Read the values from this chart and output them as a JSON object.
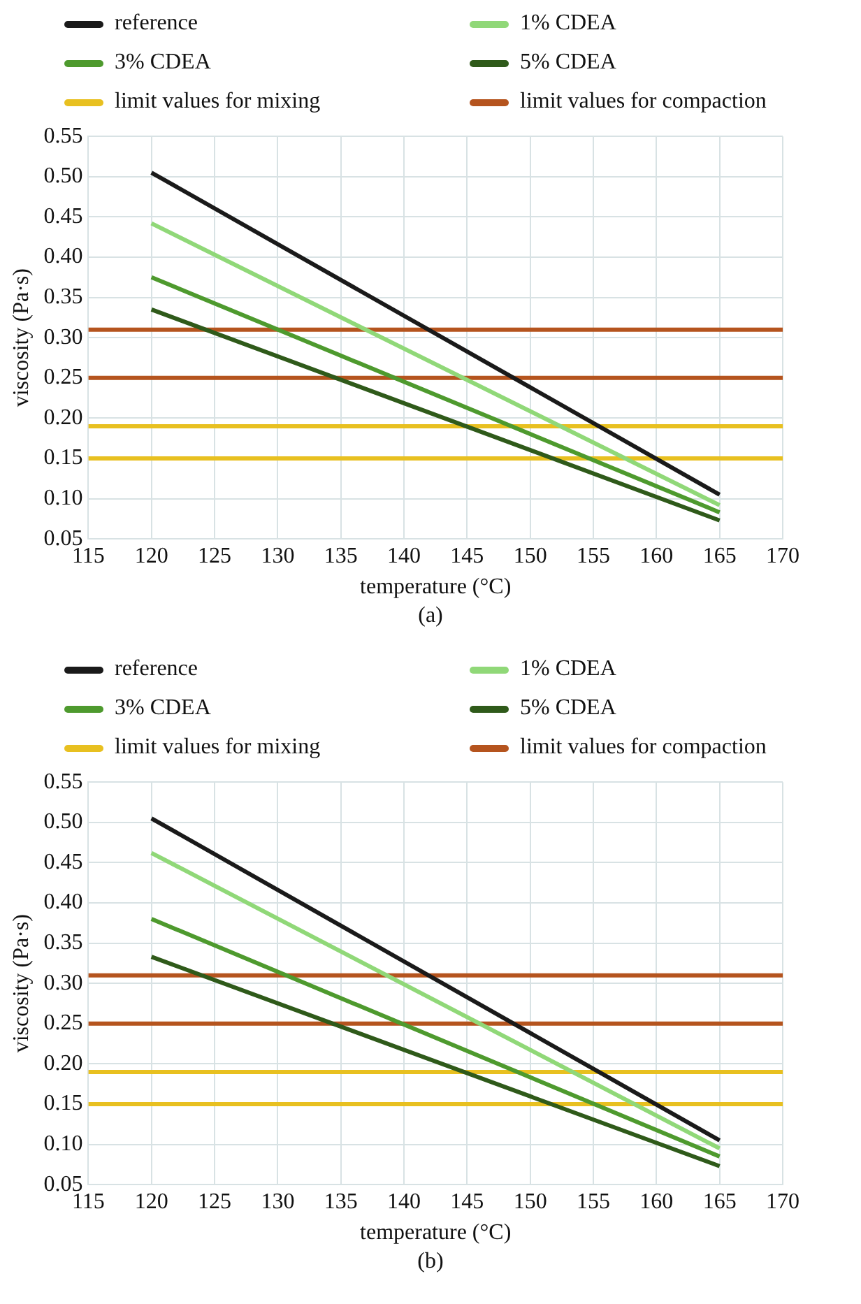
{
  "chart_data": [
    {
      "type": "line",
      "xlabel": "temperature (°C)",
      "ylabel": "viscosity (Pa·s)",
      "annotations": [
        "(a)"
      ],
      "xlim": [
        115,
        170
      ],
      "xticks": [
        115,
        120,
        125,
        130,
        135,
        140,
        145,
        150,
        155,
        160,
        165,
        170
      ],
      "ylim": [
        0.05,
        0.55
      ],
      "yticks": [
        0.05,
        {
          "value": 0.1,
          "label": "0.10"
        },
        0.15,
        {
          "value": 0.2,
          "label": "0.20"
        },
        0.25,
        {
          "value": 0.3,
          "label": "0.30"
        },
        0.35,
        {
          "value": 0.4,
          "label": "0.40"
        },
        0.45,
        {
          "value": 0.5,
          "label": "0.50"
        },
        0.55
      ],
      "grid": true,
      "legend": "top",
      "marker": "none",
      "line_style": "solid",
      "series": [
        {
          "name": "reference",
          "color": "#1a1a1a",
          "x": [
            120,
            165
          ],
          "values": [
            0.505,
            0.105
          ]
        },
        {
          "name": "1% CDEA",
          "color": "#90d878",
          "x": [
            120,
            165
          ],
          "values": [
            0.442,
            0.092
          ]
        },
        {
          "name": "3% CDEA",
          "color": "#4e9a2e",
          "x": [
            120,
            165
          ],
          "values": [
            0.375,
            0.083
          ]
        },
        {
          "name": "5% CDEA",
          "color": "#2f5a1a",
          "x": [
            120,
            165
          ],
          "values": [
            0.335,
            0.073
          ]
        },
        {
          "name": "limit values for mixing",
          "color": "#e8c020",
          "x": [
            115,
            170
          ],
          "values": [
            0.19,
            0.19
          ]
        },
        {
          "name": "limit values for compaction",
          "color": "#b5541e",
          "x": [
            115,
            170
          ],
          "values": [
            0.31,
            0.31
          ]
        },
        {
          "color": "#e8c020",
          "x": [
            115,
            170
          ],
          "values": [
            0.15,
            0.15
          ]
        },
        {
          "color": "#b5541e",
          "x": [
            115,
            170
          ],
          "values": [
            0.25,
            0.25
          ]
        }
      ]
    },
    {
      "type": "line",
      "xlabel": "temperature (°C)",
      "ylabel": "viscosity (Pa·s)",
      "annotations": [
        "(b)"
      ],
      "xlim": [
        115,
        170
      ],
      "xticks": [
        115,
        120,
        125,
        130,
        135,
        140,
        145,
        150,
        155,
        160,
        165,
        170
      ],
      "ylim": [
        0.05,
        0.55
      ],
      "yticks": [
        0.05,
        {
          "value": 0.1,
          "label": "0.10"
        },
        0.15,
        {
          "value": 0.2,
          "label": "0.20"
        },
        0.25,
        {
          "value": 0.3,
          "label": "0.30"
        },
        0.35,
        {
          "value": 0.4,
          "label": "0.40"
        },
        0.45,
        {
          "value": 0.5,
          "label": "0.50"
        },
        0.55
      ],
      "grid": true,
      "legend": "top",
      "marker": "none",
      "line_style": "solid",
      "series": [
        {
          "name": "reference",
          "color": "#1a1a1a",
          "x": [
            120,
            165
          ],
          "values": [
            0.505,
            0.105
          ]
        },
        {
          "name": "1% CDEA",
          "color": "#90d878",
          "x": [
            120,
            165
          ],
          "values": [
            0.462,
            0.095
          ]
        },
        {
          "name": "3% CDEA",
          "color": "#4e9a2e",
          "x": [
            120,
            165
          ],
          "values": [
            0.38,
            0.085
          ]
        },
        {
          "name": "5% CDEA",
          "color": "#2f5a1a",
          "x": [
            120,
            165
          ],
          "values": [
            0.333,
            0.073
          ]
        },
        {
          "name": "limit values for mixing",
          "color": "#e8c020",
          "x": [
            115,
            170
          ],
          "values": [
            0.19,
            0.19
          ]
        },
        {
          "name": "limit values for compaction",
          "color": "#b5541e",
          "x": [
            115,
            170
          ],
          "values": [
            0.31,
            0.31
          ]
        },
        {
          "color": "#e8c020",
          "x": [
            115,
            170
          ],
          "values": [
            0.15,
            0.15
          ]
        },
        {
          "color": "#b5541e",
          "x": [
            115,
            170
          ],
          "values": [
            0.25,
            0.25
          ]
        }
      ]
    }
  ]
}
